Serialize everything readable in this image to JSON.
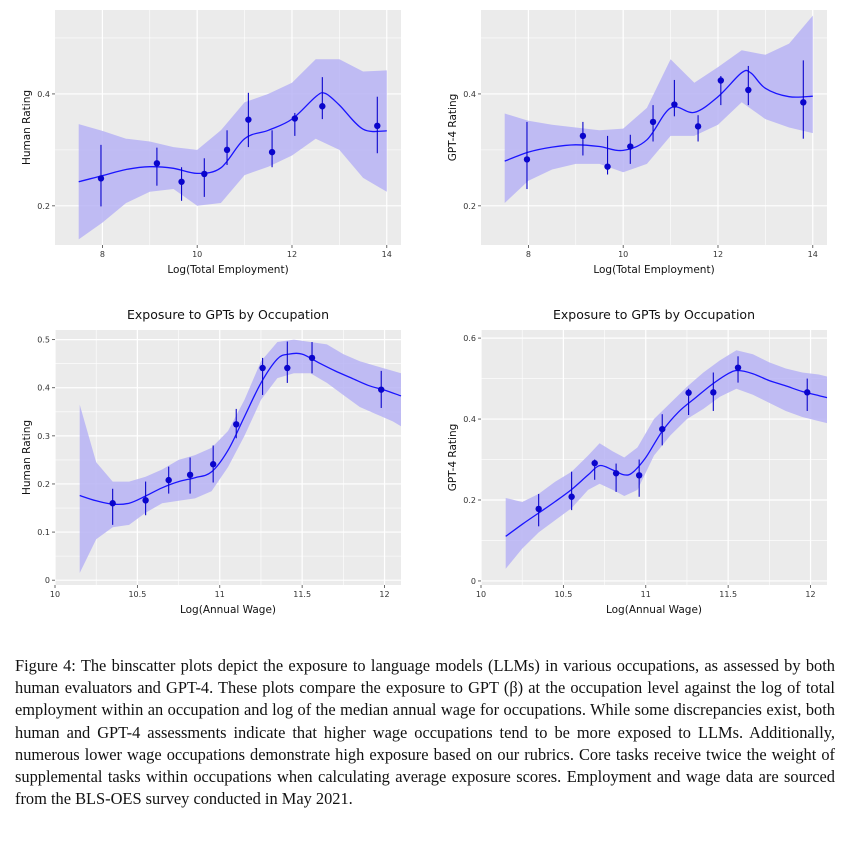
{
  "chart_data": [
    {
      "type": "scatter",
      "title": "",
      "xlabel": "Log(Total Employment)",
      "ylabel": "Human Rating",
      "xlim": [
        7.0,
        14.3
      ],
      "ylim": [
        0.13,
        0.55
      ],
      "xticks": [
        8,
        10,
        12,
        14
      ],
      "yticks": [
        0.2,
        0.4
      ],
      "grid": true,
      "points": [
        {
          "x": 7.97,
          "y": 0.249,
          "lo": 0.199,
          "hi": 0.309
        },
        {
          "x": 9.15,
          "y": 0.276,
          "lo": 0.236,
          "hi": 0.304
        },
        {
          "x": 9.67,
          "y": 0.243,
          "lo": 0.209,
          "hi": 0.269
        },
        {
          "x": 10.15,
          "y": 0.257,
          "lo": 0.216,
          "hi": 0.285
        },
        {
          "x": 10.63,
          "y": 0.3,
          "lo": 0.273,
          "hi": 0.335
        },
        {
          "x": 11.08,
          "y": 0.354,
          "lo": 0.305,
          "hi": 0.402
        },
        {
          "x": 11.58,
          "y": 0.296,
          "lo": 0.269,
          "hi": 0.335
        },
        {
          "x": 12.06,
          "y": 0.356,
          "lo": 0.325,
          "hi": 0.366
        },
        {
          "x": 12.64,
          "y": 0.378,
          "lo": 0.355,
          "hi": 0.43
        },
        {
          "x": 13.8,
          "y": 0.343,
          "lo": 0.294,
          "hi": 0.395
        }
      ],
      "fit": [
        [
          7.5,
          0.243
        ],
        [
          8.0,
          0.254
        ],
        [
          8.5,
          0.265
        ],
        [
          9.0,
          0.27
        ],
        [
          9.5,
          0.267
        ],
        [
          10.0,
          0.258
        ],
        [
          10.5,
          0.268
        ],
        [
          11.0,
          0.32
        ],
        [
          11.5,
          0.335
        ],
        [
          12.0,
          0.355
        ],
        [
          12.5,
          0.395
        ],
        [
          12.7,
          0.401
        ],
        [
          13.0,
          0.38
        ],
        [
          13.5,
          0.337
        ],
        [
          14.0,
          0.334
        ]
      ],
      "band": [
        [
          7.5,
          0.14,
          0.346
        ],
        [
          8.0,
          0.17,
          0.334
        ],
        [
          8.5,
          0.205,
          0.32
        ],
        [
          9.0,
          0.225,
          0.315
        ],
        [
          9.5,
          0.23,
          0.305
        ],
        [
          10.0,
          0.2,
          0.3
        ],
        [
          10.5,
          0.205,
          0.335
        ],
        [
          11.0,
          0.255,
          0.385
        ],
        [
          11.5,
          0.27,
          0.4
        ],
        [
          12.0,
          0.29,
          0.42
        ],
        [
          12.5,
          0.32,
          0.462
        ],
        [
          13.0,
          0.3,
          0.462
        ],
        [
          13.5,
          0.25,
          0.44
        ],
        [
          14.0,
          0.225,
          0.442
        ]
      ]
    },
    {
      "type": "scatter",
      "title": "",
      "xlabel": "Log(Total Employment)",
      "ylabel": "GPT-4 Rating",
      "xlim": [
        7.0,
        14.3
      ],
      "ylim": [
        0.13,
        0.55
      ],
      "xticks": [
        8,
        10,
        12,
        14
      ],
      "yticks": [
        0.2,
        0.4
      ],
      "grid": true,
      "points": [
        {
          "x": 7.97,
          "y": 0.283,
          "lo": 0.23,
          "hi": 0.35
        },
        {
          "x": 9.15,
          "y": 0.325,
          "lo": 0.29,
          "hi": 0.35
        },
        {
          "x": 9.67,
          "y": 0.27,
          "lo": 0.256,
          "hi": 0.325
        },
        {
          "x": 10.15,
          "y": 0.306,
          "lo": 0.275,
          "hi": 0.327
        },
        {
          "x": 10.63,
          "y": 0.35,
          "lo": 0.315,
          "hi": 0.38
        },
        {
          "x": 11.08,
          "y": 0.381,
          "lo": 0.36,
          "hi": 0.425
        },
        {
          "x": 11.58,
          "y": 0.342,
          "lo": 0.315,
          "hi": 0.362
        },
        {
          "x": 12.06,
          "y": 0.424,
          "lo": 0.38,
          "hi": 0.432
        },
        {
          "x": 12.64,
          "y": 0.407,
          "lo": 0.38,
          "hi": 0.45
        },
        {
          "x": 13.8,
          "y": 0.385,
          "lo": 0.32,
          "hi": 0.46
        }
      ],
      "fit": [
        [
          7.5,
          0.28
        ],
        [
          8.0,
          0.296
        ],
        [
          8.5,
          0.305
        ],
        [
          9.0,
          0.309
        ],
        [
          9.5,
          0.306
        ],
        [
          10.0,
          0.299
        ],
        [
          10.5,
          0.318
        ],
        [
          11.0,
          0.375
        ],
        [
          11.5,
          0.367
        ],
        [
          12.0,
          0.395
        ],
        [
          12.5,
          0.438
        ],
        [
          12.7,
          0.437
        ],
        [
          13.0,
          0.41
        ],
        [
          13.5,
          0.395
        ],
        [
          14.0,
          0.396
        ]
      ],
      "band": [
        [
          7.5,
          0.205,
          0.365
        ],
        [
          8.0,
          0.245,
          0.352
        ],
        [
          8.5,
          0.265,
          0.345
        ],
        [
          9.0,
          0.275,
          0.34
        ],
        [
          9.5,
          0.275,
          0.335
        ],
        [
          10.0,
          0.26,
          0.338
        ],
        [
          10.5,
          0.275,
          0.375
        ],
        [
          11.0,
          0.325,
          0.462
        ],
        [
          11.5,
          0.325,
          0.42
        ],
        [
          12.0,
          0.345,
          0.448
        ],
        [
          12.5,
          0.385,
          0.478
        ],
        [
          13.0,
          0.355,
          0.47
        ],
        [
          13.5,
          0.34,
          0.49
        ],
        [
          14.0,
          0.33,
          0.54
        ]
      ]
    },
    {
      "type": "scatter",
      "title": "Exposure to GPTs by Occupation",
      "xlabel": "Log(Annual Wage)",
      "ylabel": "Human Rating",
      "xlim": [
        10.0,
        12.1
      ],
      "ylim": [
        -0.01,
        0.52
      ],
      "xticks": [
        10,
        10.5,
        11,
        11.5,
        12
      ],
      "yticks": [
        0,
        0.1,
        0.2,
        0.3,
        0.4,
        0.5
      ],
      "grid": true,
      "points": [
        {
          "x": 10.35,
          "y": 0.16,
          "lo": 0.115,
          "hi": 0.19
        },
        {
          "x": 10.55,
          "y": 0.166,
          "lo": 0.135,
          "hi": 0.205
        },
        {
          "x": 10.69,
          "y": 0.208,
          "lo": 0.18,
          "hi": 0.236
        },
        {
          "x": 10.82,
          "y": 0.219,
          "lo": 0.18,
          "hi": 0.255
        },
        {
          "x": 10.96,
          "y": 0.241,
          "lo": 0.203,
          "hi": 0.28
        },
        {
          "x": 11.1,
          "y": 0.324,
          "lo": 0.295,
          "hi": 0.356
        },
        {
          "x": 11.26,
          "y": 0.441,
          "lo": 0.385,
          "hi": 0.462
        },
        {
          "x": 11.41,
          "y": 0.441,
          "lo": 0.41,
          "hi": 0.496
        },
        {
          "x": 11.56,
          "y": 0.462,
          "lo": 0.43,
          "hi": 0.495
        },
        {
          "x": 11.98,
          "y": 0.396,
          "lo": 0.358,
          "hi": 0.435
        }
      ],
      "fit": [
        [
          10.15,
          0.176
        ],
        [
          10.25,
          0.165
        ],
        [
          10.35,
          0.158
        ],
        [
          10.45,
          0.16
        ],
        [
          10.55,
          0.175
        ],
        [
          10.65,
          0.192
        ],
        [
          10.75,
          0.205
        ],
        [
          10.85,
          0.213
        ],
        [
          10.95,
          0.225
        ],
        [
          11.05,
          0.27
        ],
        [
          11.15,
          0.34
        ],
        [
          11.25,
          0.41
        ],
        [
          11.35,
          0.46
        ],
        [
          11.42,
          0.47
        ],
        [
          11.5,
          0.47
        ],
        [
          11.6,
          0.452
        ],
        [
          11.7,
          0.435
        ],
        [
          11.8,
          0.42
        ],
        [
          11.9,
          0.405
        ],
        [
          12.0,
          0.395
        ],
        [
          12.1,
          0.383
        ]
      ],
      "band": [
        [
          10.15,
          0.015,
          0.365
        ],
        [
          10.25,
          0.085,
          0.245
        ],
        [
          10.35,
          0.11,
          0.205
        ],
        [
          10.45,
          0.115,
          0.205
        ],
        [
          10.55,
          0.14,
          0.215
        ],
        [
          10.65,
          0.16,
          0.23
        ],
        [
          10.75,
          0.165,
          0.25
        ],
        [
          10.85,
          0.17,
          0.26
        ],
        [
          10.95,
          0.185,
          0.275
        ],
        [
          11.05,
          0.235,
          0.31
        ],
        [
          11.15,
          0.3,
          0.375
        ],
        [
          11.25,
          0.375,
          0.455
        ],
        [
          11.35,
          0.42,
          0.495
        ],
        [
          11.45,
          0.43,
          0.5
        ],
        [
          11.55,
          0.43,
          0.495
        ],
        [
          11.65,
          0.41,
          0.49
        ],
        [
          11.75,
          0.385,
          0.47
        ],
        [
          11.85,
          0.36,
          0.455
        ],
        [
          11.95,
          0.345,
          0.445
        ],
        [
          12.05,
          0.33,
          0.435
        ],
        [
          12.1,
          0.32,
          0.43
        ]
      ]
    },
    {
      "type": "scatter",
      "title": "Exposure to GPTs by Occupation",
      "xlabel": "Log(Annual Wage)",
      "ylabel": "GPT-4 Rating",
      "xlim": [
        10.0,
        12.1
      ],
      "ylim": [
        -0.01,
        0.62
      ],
      "xticks": [
        10,
        10.5,
        11,
        11.5,
        12
      ],
      "yticks": [
        0,
        0.2,
        0.4,
        0.6
      ],
      "grid": true,
      "points": [
        {
          "x": 10.35,
          "y": 0.178,
          "lo": 0.135,
          "hi": 0.215
        },
        {
          "x": 10.55,
          "y": 0.208,
          "lo": 0.175,
          "hi": 0.27
        },
        {
          "x": 10.69,
          "y": 0.291,
          "lo": 0.25,
          "hi": 0.3
        },
        {
          "x": 10.82,
          "y": 0.266,
          "lo": 0.22,
          "hi": 0.29
        },
        {
          "x": 10.96,
          "y": 0.261,
          "lo": 0.208,
          "hi": 0.3
        },
        {
          "x": 11.1,
          "y": 0.375,
          "lo": 0.335,
          "hi": 0.412
        },
        {
          "x": 11.26,
          "y": 0.465,
          "lo": 0.41,
          "hi": 0.475
        },
        {
          "x": 11.41,
          "y": 0.466,
          "lo": 0.42,
          "hi": 0.515
        },
        {
          "x": 11.56,
          "y": 0.527,
          "lo": 0.49,
          "hi": 0.555
        },
        {
          "x": 11.98,
          "y": 0.466,
          "lo": 0.42,
          "hi": 0.5
        }
      ],
      "fit": [
        [
          10.15,
          0.11
        ],
        [
          10.25,
          0.14
        ],
        [
          10.35,
          0.168
        ],
        [
          10.45,
          0.196
        ],
        [
          10.55,
          0.226
        ],
        [
          10.65,
          0.262
        ],
        [
          10.72,
          0.285
        ],
        [
          10.8,
          0.274
        ],
        [
          10.87,
          0.262
        ],
        [
          10.92,
          0.268
        ],
        [
          11.0,
          0.305
        ],
        [
          11.1,
          0.37
        ],
        [
          11.2,
          0.418
        ],
        [
          11.3,
          0.452
        ],
        [
          11.4,
          0.485
        ],
        [
          11.5,
          0.512
        ],
        [
          11.56,
          0.52
        ],
        [
          11.65,
          0.512
        ],
        [
          11.75,
          0.495
        ],
        [
          11.85,
          0.482
        ],
        [
          11.95,
          0.468
        ],
        [
          12.05,
          0.458
        ],
        [
          12.1,
          0.453
        ]
      ],
      "band": [
        [
          10.15,
          0.03,
          0.205
        ],
        [
          10.25,
          0.08,
          0.195
        ],
        [
          10.35,
          0.12,
          0.215
        ],
        [
          10.45,
          0.15,
          0.245
        ],
        [
          10.55,
          0.18,
          0.27
        ],
        [
          10.65,
          0.225,
          0.31
        ],
        [
          10.72,
          0.24,
          0.34
        ],
        [
          10.8,
          0.225,
          0.32
        ],
        [
          10.87,
          0.21,
          0.305
        ],
        [
          10.95,
          0.225,
          0.33
        ],
        [
          11.05,
          0.31,
          0.4
        ],
        [
          11.15,
          0.36,
          0.44
        ],
        [
          11.25,
          0.4,
          0.48
        ],
        [
          11.35,
          0.425,
          0.515
        ],
        [
          11.45,
          0.455,
          0.545
        ],
        [
          11.55,
          0.475,
          0.57
        ],
        [
          11.65,
          0.46,
          0.56
        ],
        [
          11.75,
          0.44,
          0.54
        ],
        [
          11.85,
          0.42,
          0.525
        ],
        [
          11.95,
          0.405,
          0.515
        ],
        [
          12.05,
          0.395,
          0.51
        ],
        [
          12.1,
          0.39,
          0.505
        ]
      ]
    }
  ],
  "caption": "Figure 4: The binscatter plots depict the exposure to language models (LLMs) in various occupations, as assessed by both human evaluators and GPT-4. These plots compare the exposure to GPT (β) at the occupation level against the log of total employment within an occupation and log of the median annual wage for occupations. While some discrepancies exist, both human and GPT-4 assessments indicate that higher wage occupations tend to be more exposed to LLMs. Additionally, numerous lower wage occupations demonstrate high exposure based on our rubrics. Core tasks receive twice the weight of supplemental tasks within occupations when calculating average exposure scores. Employment and wage data are sourced from the BLS-OES survey conducted in May 2021.",
  "colors": {
    "panel_bg": "#ebebeb",
    "grid": "#ffffff",
    "line": "#1a14ff",
    "band": "#b7b3f4",
    "point": "#0a05cc",
    "text": "#333333"
  }
}
